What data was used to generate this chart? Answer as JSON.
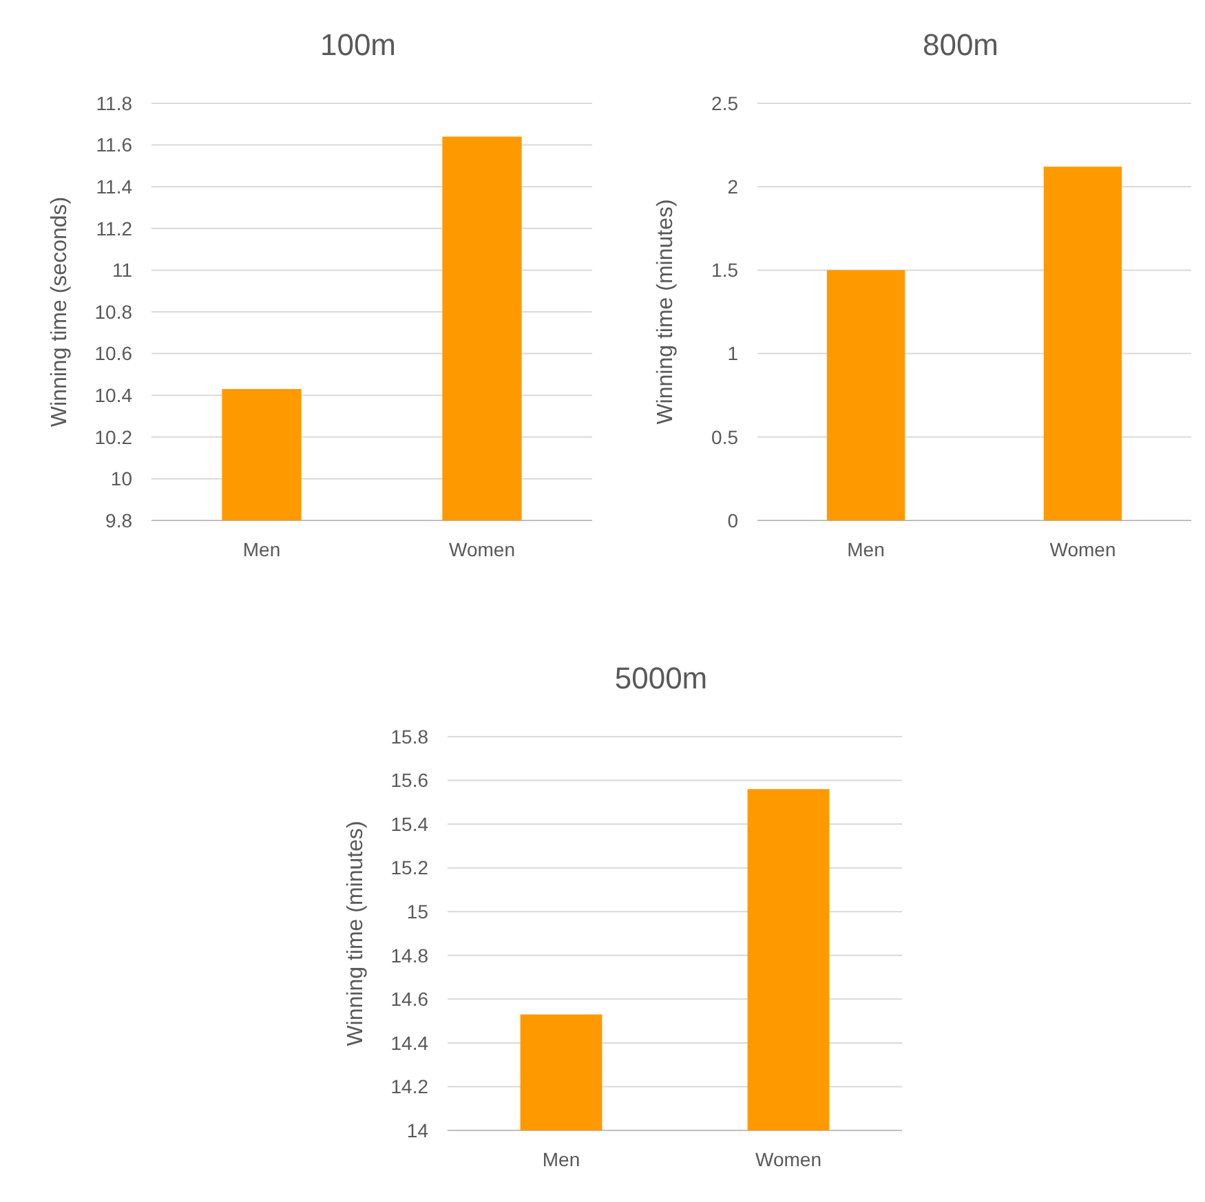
{
  "chart_data": [
    {
      "type": "bar",
      "title": "100m",
      "ylabel": "Winning time (seconds)",
      "categories": [
        "Men",
        "Women"
      ],
      "values": [
        10.43,
        11.64
      ],
      "color": "#ff9900",
      "ylim": [
        9.8,
        11.8
      ],
      "yticks": [
        {
          "value": 9.8,
          "label": "9.8"
        },
        {
          "value": 10,
          "label": "10"
        },
        {
          "value": 10.2,
          "label": "10.2"
        },
        {
          "value": 10.4,
          "label": "10.4"
        },
        {
          "value": 10.6,
          "label": "10.6"
        },
        {
          "value": 10.8,
          "label": "10.8"
        },
        {
          "value": 11,
          "label": "11"
        },
        {
          "value": 11.2,
          "label": "11.2"
        },
        {
          "value": 11.4,
          "label": "11.4"
        },
        {
          "value": 11.6,
          "label": "11.6"
        },
        {
          "value": 11.8,
          "label": "11.8"
        }
      ],
      "grid": "y"
    },
    {
      "type": "bar",
      "title": "800m",
      "ylabel": "Winning time (minutes)",
      "categories": [
        "Men",
        "Women"
      ],
      "values": [
        1.5,
        2.12
      ],
      "color": "#ff9900",
      "ylim": [
        0,
        2.5
      ],
      "yticks": [
        0,
        0.5,
        1,
        1.5,
        2,
        2.5
      ],
      "grid": "y"
    },
    {
      "type": "bar",
      "title": "5000m",
      "ylabel": "Winning time (minutes)",
      "categories": [
        "Men",
        "Women"
      ],
      "values": [
        14.53,
        15.56
      ],
      "color": "#ff9900",
      "ylim": [
        14,
        15.8
      ],
      "yticks": [
        14,
        14.2,
        14.4,
        14.6,
        14.8,
        15,
        15.2,
        15.4,
        15.6,
        15.8
      ],
      "grid": "y"
    }
  ]
}
